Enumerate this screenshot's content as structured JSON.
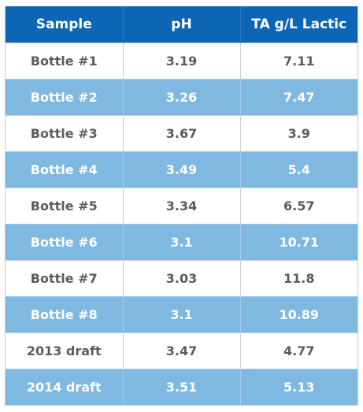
{
  "table": {
    "headers": [
      "Sample",
      "pH",
      "TA g/L Lactic"
    ],
    "rows": [
      [
        "Bottle #1",
        "3.19",
        "7.11"
      ],
      [
        "Bottle #2",
        "3.26",
        "7.47"
      ],
      [
        "Bottle #3",
        "3.67",
        "3.9"
      ],
      [
        "Bottle #4",
        "3.49",
        "5.4"
      ],
      [
        "Bottle #5",
        "3.34",
        "6.57"
      ],
      [
        "Bottle #6",
        "3.1",
        "10.71"
      ],
      [
        "Bottle #7",
        "3.03",
        "11.8"
      ],
      [
        "Bottle #8",
        "3.1",
        "10.89"
      ],
      [
        "2013 draft",
        "3.47",
        "4.77"
      ],
      [
        "2014 draft",
        "3.51",
        "5.13"
      ]
    ]
  },
  "colors": {
    "header_bg": "#0d65b5",
    "alt_row_bg": "#7fb8e0",
    "row_bg": "#ffffff",
    "text_dark": "#595d61",
    "text_light": "#ffffff"
  }
}
